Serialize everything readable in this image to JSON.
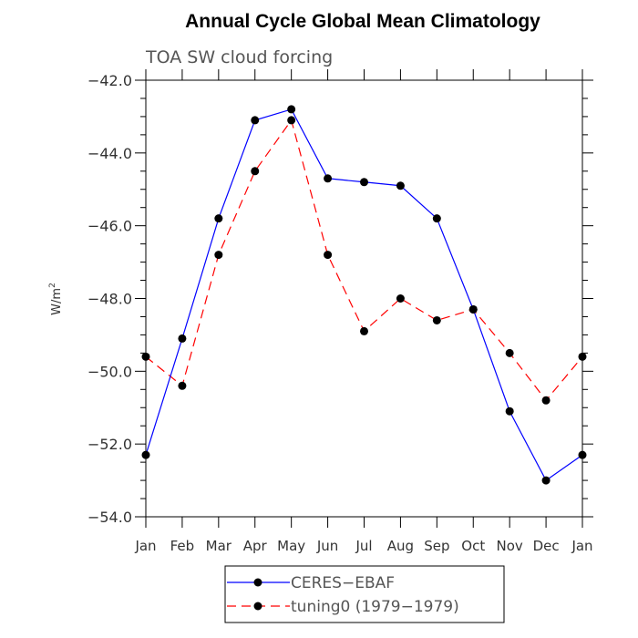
{
  "chart_data": {
    "type": "line",
    "title": "Annual Cycle Global Mean Climatology",
    "subtitle": "TOA SW cloud forcing",
    "ylabel": "W/m",
    "ylabel_sup": "2",
    "categories": [
      "Jan",
      "Feb",
      "Mar",
      "Apr",
      "May",
      "Jun",
      "Jul",
      "Aug",
      "Sep",
      "Oct",
      "Nov",
      "Dec",
      "Jan"
    ],
    "ylim": [
      -54.0,
      -42.0
    ],
    "yticks": [
      -54.0,
      -52.0,
      -50.0,
      -48.0,
      -46.0,
      -44.0,
      -42.0
    ],
    "ytick_labels": [
      "−54.0",
      "−52.0",
      "−50.0",
      "−48.0",
      "−46.0",
      "−44.0",
      "−42.0"
    ],
    "grid": false,
    "legend_position": "bottom",
    "series": [
      {
        "name": "CERES−EBAF",
        "color": "#0000ff",
        "dash": "solid",
        "values": [
          -52.3,
          -49.1,
          -45.8,
          -43.1,
          -42.8,
          -44.7,
          -44.8,
          -44.9,
          -45.8,
          -48.3,
          -51.1,
          -53.0,
          -52.3
        ]
      },
      {
        "name": "tuning0 (1979−1979)",
        "color": "#ff0000",
        "dash": "dashed",
        "values": [
          -49.6,
          -50.4,
          -46.8,
          -44.5,
          -43.1,
          -46.8,
          -48.9,
          -48.0,
          -48.6,
          -48.3,
          -49.5,
          -50.8,
          -49.6
        ]
      }
    ]
  }
}
